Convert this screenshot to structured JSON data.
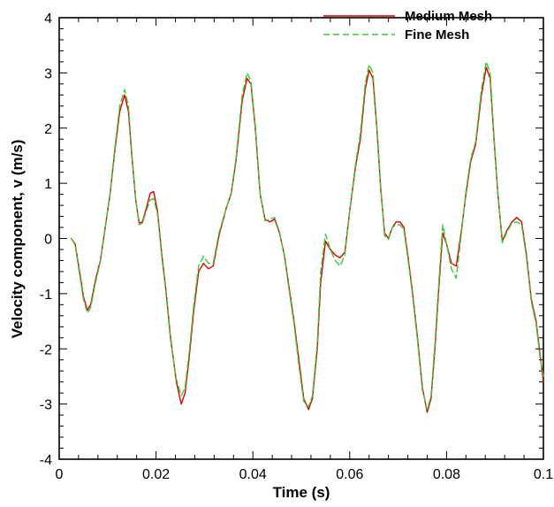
{
  "chart_data": {
    "type": "line",
    "xlabel": "Time (s)",
    "ylabel": "Velocity component, v (m/s)",
    "xlim": [
      0,
      0.1
    ],
    "ylim": [
      -4,
      4
    ],
    "x_ticks": [
      0,
      0.02,
      0.04,
      0.06,
      0.08,
      0.1
    ],
    "x_tick_labels": [
      "0",
      "0.02",
      "0.04",
      "0.06",
      "0.08",
      "0.1"
    ],
    "y_ticks": [
      -4,
      -3,
      -2,
      -1,
      0,
      1,
      2,
      3,
      4
    ],
    "y_tick_labels": [
      "-4",
      "-3",
      "-2",
      "-1",
      "0",
      "1",
      "2",
      "3",
      "4"
    ],
    "grid": false,
    "legend_position": "top-right",
    "series": [
      {
        "name": "Medium Mesh",
        "color": "#e00000",
        "dash": "solid",
        "points": [
          [
            0.0025,
            0.0
          ],
          [
            0.0033,
            -0.1
          ],
          [
            0.0042,
            -0.6
          ],
          [
            0.005,
            -1.05
          ],
          [
            0.0058,
            -1.3
          ],
          [
            0.0065,
            -1.2
          ],
          [
            0.0075,
            -0.75
          ],
          [
            0.0085,
            -0.4
          ],
          [
            0.0095,
            0.2
          ],
          [
            0.0105,
            0.8
          ],
          [
            0.0115,
            1.6
          ],
          [
            0.0125,
            2.3
          ],
          [
            0.0135,
            2.6
          ],
          [
            0.0143,
            2.3
          ],
          [
            0.015,
            1.5
          ],
          [
            0.0158,
            0.7
          ],
          [
            0.0165,
            0.28
          ],
          [
            0.0172,
            0.3
          ],
          [
            0.018,
            0.55
          ],
          [
            0.0188,
            0.82
          ],
          [
            0.0195,
            0.85
          ],
          [
            0.0203,
            0.5
          ],
          [
            0.0212,
            -0.3
          ],
          [
            0.022,
            -0.9
          ],
          [
            0.023,
            -1.8
          ],
          [
            0.0242,
            -2.6
          ],
          [
            0.0252,
            -3.0
          ],
          [
            0.026,
            -2.8
          ],
          [
            0.0268,
            -2.2
          ],
          [
            0.0278,
            -1.3
          ],
          [
            0.0288,
            -0.6
          ],
          [
            0.0298,
            -0.45
          ],
          [
            0.0308,
            -0.55
          ],
          [
            0.0318,
            -0.5
          ],
          [
            0.033,
            0.05
          ],
          [
            0.0345,
            0.55
          ],
          [
            0.0355,
            0.8
          ],
          [
            0.0365,
            1.4
          ],
          [
            0.0378,
            2.5
          ],
          [
            0.0388,
            2.9
          ],
          [
            0.0396,
            2.8
          ],
          [
            0.0405,
            2.0
          ],
          [
            0.0415,
            0.8
          ],
          [
            0.0425,
            0.35
          ],
          [
            0.0435,
            0.3
          ],
          [
            0.0445,
            0.35
          ],
          [
            0.0455,
            0.1
          ],
          [
            0.0465,
            -0.3
          ],
          [
            0.0475,
            -0.9
          ],
          [
            0.0485,
            -1.5
          ],
          [
            0.0495,
            -2.2
          ],
          [
            0.0505,
            -2.9
          ],
          [
            0.0515,
            -3.1
          ],
          [
            0.0523,
            -2.9
          ],
          [
            0.0533,
            -2.0
          ],
          [
            0.054,
            -0.8
          ],
          [
            0.055,
            -0.05
          ],
          [
            0.056,
            -0.2
          ],
          [
            0.057,
            -0.3
          ],
          [
            0.058,
            -0.35
          ],
          [
            0.059,
            -0.25
          ],
          [
            0.06,
            0.5
          ],
          [
            0.0612,
            1.3
          ],
          [
            0.0622,
            1.8
          ],
          [
            0.0632,
            2.7
          ],
          [
            0.064,
            3.05
          ],
          [
            0.0648,
            2.9
          ],
          [
            0.0656,
            2.0
          ],
          [
            0.0664,
            0.9
          ],
          [
            0.0672,
            0.1
          ],
          [
            0.068,
            0.0
          ],
          [
            0.0688,
            0.2
          ],
          [
            0.0696,
            0.3
          ],
          [
            0.0704,
            0.3
          ],
          [
            0.0712,
            0.2
          ],
          [
            0.072,
            -0.3
          ],
          [
            0.073,
            -1.0
          ],
          [
            0.074,
            -1.8
          ],
          [
            0.075,
            -2.7
          ],
          [
            0.076,
            -3.15
          ],
          [
            0.0768,
            -2.9
          ],
          [
            0.0776,
            -2.0
          ],
          [
            0.0784,
            -0.9
          ],
          [
            0.0792,
            0.1
          ],
          [
            0.08,
            -0.1
          ],
          [
            0.081,
            -0.45
          ],
          [
            0.082,
            -0.5
          ],
          [
            0.083,
            0.1
          ],
          [
            0.084,
            0.8
          ],
          [
            0.085,
            1.4
          ],
          [
            0.086,
            1.7
          ],
          [
            0.0872,
            2.6
          ],
          [
            0.0882,
            3.1
          ],
          [
            0.089,
            2.9
          ],
          [
            0.0898,
            1.8
          ],
          [
            0.0906,
            0.8
          ],
          [
            0.0915,
            -0.05
          ],
          [
            0.0925,
            0.15
          ],
          [
            0.0935,
            0.3
          ],
          [
            0.0945,
            0.38
          ],
          [
            0.0955,
            0.3
          ],
          [
            0.0965,
            -0.3
          ],
          [
            0.0975,
            -1.1
          ],
          [
            0.0985,
            -1.5
          ],
          [
            0.0993,
            -2.1
          ],
          [
            0.1,
            -2.6
          ]
        ]
      },
      {
        "name": "Fine Mesh",
        "color": "#33cc33",
        "dash": "dashed",
        "points": [
          [
            0.0025,
            0.0
          ],
          [
            0.0033,
            -0.12
          ],
          [
            0.0042,
            -0.65
          ],
          [
            0.005,
            -1.1
          ],
          [
            0.0058,
            -1.35
          ],
          [
            0.0065,
            -1.25
          ],
          [
            0.0075,
            -0.8
          ],
          [
            0.0085,
            -0.42
          ],
          [
            0.0095,
            0.18
          ],
          [
            0.0105,
            0.82
          ],
          [
            0.0115,
            1.65
          ],
          [
            0.0125,
            2.4
          ],
          [
            0.0135,
            2.7
          ],
          [
            0.0143,
            2.4
          ],
          [
            0.015,
            1.55
          ],
          [
            0.0158,
            0.72
          ],
          [
            0.0165,
            0.25
          ],
          [
            0.0172,
            0.28
          ],
          [
            0.018,
            0.5
          ],
          [
            0.0188,
            0.7
          ],
          [
            0.0195,
            0.72
          ],
          [
            0.0203,
            0.45
          ],
          [
            0.0212,
            -0.35
          ],
          [
            0.022,
            -0.95
          ],
          [
            0.023,
            -1.85
          ],
          [
            0.0242,
            -2.55
          ],
          [
            0.0252,
            -2.85
          ],
          [
            0.026,
            -2.7
          ],
          [
            0.0268,
            -2.1
          ],
          [
            0.0278,
            -1.2
          ],
          [
            0.0288,
            -0.5
          ],
          [
            0.0298,
            -0.32
          ],
          [
            0.0308,
            -0.45
          ],
          [
            0.0318,
            -0.45
          ],
          [
            0.033,
            0.1
          ],
          [
            0.0345,
            0.55
          ],
          [
            0.0355,
            0.82
          ],
          [
            0.0365,
            1.45
          ],
          [
            0.0378,
            2.6
          ],
          [
            0.0388,
            3.0
          ],
          [
            0.0396,
            2.85
          ],
          [
            0.0405,
            2.05
          ],
          [
            0.0415,
            0.82
          ],
          [
            0.0425,
            0.32
          ],
          [
            0.0435,
            0.35
          ],
          [
            0.0445,
            0.38
          ],
          [
            0.0455,
            0.12
          ],
          [
            0.0465,
            -0.32
          ],
          [
            0.0475,
            -0.95
          ],
          [
            0.0485,
            -1.55
          ],
          [
            0.0495,
            -2.3
          ],
          [
            0.0505,
            -2.95
          ],
          [
            0.0515,
            -3.05
          ],
          [
            0.0523,
            -2.85
          ],
          [
            0.0533,
            -1.9
          ],
          [
            0.054,
            -0.6
          ],
          [
            0.055,
            0.08
          ],
          [
            0.056,
            -0.2
          ],
          [
            0.057,
            -0.4
          ],
          [
            0.058,
            -0.5
          ],
          [
            0.059,
            -0.3
          ],
          [
            0.06,
            0.5
          ],
          [
            0.0612,
            1.35
          ],
          [
            0.0622,
            1.9
          ],
          [
            0.0632,
            2.8
          ],
          [
            0.064,
            3.15
          ],
          [
            0.0648,
            3.0
          ],
          [
            0.0656,
            2.05
          ],
          [
            0.0664,
            0.95
          ],
          [
            0.0672,
            0.05
          ],
          [
            0.068,
            -0.02
          ],
          [
            0.0688,
            0.2
          ],
          [
            0.0696,
            0.25
          ],
          [
            0.0704,
            0.25
          ],
          [
            0.0712,
            0.15
          ],
          [
            0.072,
            -0.35
          ],
          [
            0.073,
            -1.05
          ],
          [
            0.074,
            -1.85
          ],
          [
            0.075,
            -2.75
          ],
          [
            0.076,
            -3.1
          ],
          [
            0.0768,
            -2.85
          ],
          [
            0.0776,
            -1.9
          ],
          [
            0.0784,
            -0.8
          ],
          [
            0.0792,
            0.25
          ],
          [
            0.08,
            -0.1
          ],
          [
            0.081,
            -0.55
          ],
          [
            0.082,
            -0.72
          ],
          [
            0.083,
            0.05
          ],
          [
            0.084,
            0.85
          ],
          [
            0.085,
            1.45
          ],
          [
            0.086,
            1.75
          ],
          [
            0.0872,
            2.7
          ],
          [
            0.0882,
            3.2
          ],
          [
            0.089,
            3.0
          ],
          [
            0.0898,
            1.85
          ],
          [
            0.0906,
            0.82
          ],
          [
            0.0915,
            -0.08
          ],
          [
            0.0925,
            0.12
          ],
          [
            0.0935,
            0.28
          ],
          [
            0.0945,
            0.3
          ],
          [
            0.0955,
            0.25
          ],
          [
            0.0965,
            -0.35
          ],
          [
            0.0975,
            -1.15
          ],
          [
            0.0985,
            -1.55
          ],
          [
            0.0993,
            -2.15
          ],
          [
            0.1,
            -2.5
          ]
        ]
      }
    ]
  }
}
